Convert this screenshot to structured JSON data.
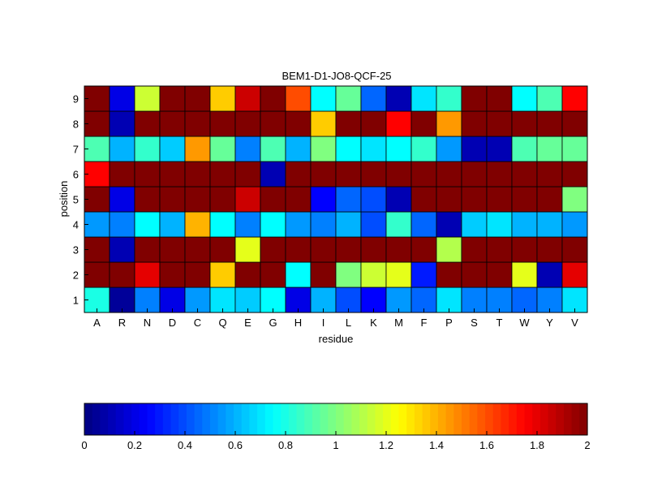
{
  "chart_data": {
    "type": "heatmap",
    "title": "BEM1-D1-JO8-QCF-25",
    "xlabel": "residue",
    "ylabel": "position",
    "x_categories": [
      "A",
      "R",
      "N",
      "D",
      "C",
      "Q",
      "E",
      "G",
      "H",
      "I",
      "L",
      "K",
      "M",
      "F",
      "P",
      "S",
      "T",
      "W",
      "Y",
      "V"
    ],
    "y_categories": [
      "1",
      "2",
      "3",
      "4",
      "5",
      "6",
      "7",
      "8",
      "9"
    ],
    "values": [
      [
        0.8,
        0.05,
        0.5,
        0.2,
        0.55,
        0.7,
        0.65,
        0.75,
        0.2,
        0.6,
        0.4,
        0.25,
        0.55,
        0.45,
        0.7,
        0.5,
        0.5,
        0.45,
        0.5,
        0.7
      ],
      [
        2.0,
        2.0,
        1.8,
        2.0,
        2.0,
        1.35,
        2.0,
        2.0,
        0.75,
        2.0,
        1.0,
        1.15,
        1.2,
        0.3,
        2.0,
        2.0,
        2.0,
        1.2,
        0.1,
        1.8
      ],
      [
        2.0,
        0.1,
        2.0,
        2.0,
        2.0,
        2.0,
        1.2,
        2.0,
        2.0,
        2.0,
        2.0,
        2.0,
        2.0,
        2.0,
        1.1,
        2.0,
        2.0,
        2.0,
        2.0,
        2.0
      ],
      [
        0.55,
        0.5,
        0.75,
        0.6,
        1.4,
        0.75,
        0.5,
        0.75,
        0.55,
        0.5,
        0.6,
        0.4,
        0.85,
        0.45,
        0.1,
        0.65,
        0.7,
        0.6,
        0.6,
        0.55
      ],
      [
        2.0,
        0.2,
        2.0,
        2.0,
        2.0,
        2.0,
        1.85,
        2.0,
        2.0,
        0.25,
        0.45,
        0.4,
        0.1,
        2.0,
        2.0,
        2.0,
        2.0,
        2.0,
        2.0,
        1.0
      ],
      [
        1.75,
        2.0,
        2.0,
        2.0,
        2.0,
        2.0,
        2.0,
        0.1,
        2.0,
        2.0,
        2.0,
        2.0,
        2.0,
        2.0,
        2.0,
        2.0,
        2.0,
        2.0,
        2.0,
        2.0
      ],
      [
        0.9,
        0.6,
        0.85,
        0.65,
        1.45,
        0.95,
        0.5,
        0.9,
        0.6,
        1.0,
        0.75,
        0.7,
        0.75,
        0.85,
        0.55,
        0.1,
        0.1,
        0.9,
        0.95,
        0.95
      ],
      [
        2.0,
        0.1,
        2.0,
        2.0,
        2.0,
        2.0,
        2.0,
        2.0,
        2.0,
        1.35,
        2.0,
        2.0,
        1.75,
        2.0,
        1.45,
        2.0,
        2.0,
        2.0,
        2.0,
        2.0
      ],
      [
        2.0,
        0.2,
        1.15,
        2.0,
        2.0,
        1.35,
        1.85,
        2.0,
        1.6,
        0.75,
        0.95,
        0.45,
        0.1,
        0.7,
        0.85,
        2.0,
        2.0,
        0.75,
        0.9,
        1.75
      ]
    ],
    "colormap": "jet",
    "colorbar": {
      "min": 0,
      "max": 2,
      "ticks": [
        "0",
        "0.2",
        "0.4",
        "0.6",
        "0.8",
        "1",
        "1.2",
        "1.4",
        "1.6",
        "1.8",
        "2"
      ],
      "placement": "bottom"
    }
  }
}
